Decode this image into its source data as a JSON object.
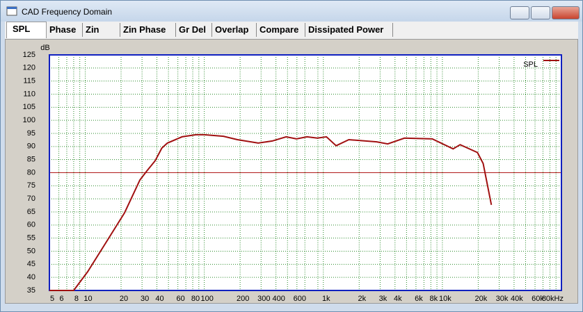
{
  "window": {
    "title": "CAD Frequency Domain"
  },
  "tabs": [
    "SPL",
    "Phase",
    "Zin",
    "Zin Phase",
    "Gr Del",
    "Overlap",
    "Compare",
    "Dissipated Power"
  ],
  "chart_data": {
    "type": "line",
    "y_label": "dB",
    "log_x": true,
    "grid": true,
    "legend": "upper right",
    "xlim": [
      5,
      100000
    ],
    "ylim": [
      35,
      125
    ],
    "yticks": [
      35,
      40,
      45,
      50,
      55,
      60,
      65,
      70,
      75,
      80,
      85,
      90,
      95,
      100,
      105,
      110,
      115,
      120,
      125
    ],
    "xticks": [
      5,
      6,
      8,
      10,
      20,
      30,
      40,
      60,
      80,
      100,
      200,
      300,
      400,
      600,
      {
        "value": 1000,
        "label": "1k"
      },
      {
        "value": 2000,
        "label": "2k"
      },
      {
        "value": 3000,
        "label": "3k"
      },
      {
        "value": 4000,
        "label": "4k"
      },
      {
        "value": 6000,
        "label": "6k"
      },
      {
        "value": 8000,
        "label": "8k"
      },
      {
        "value": 10000,
        "label": "10k"
      },
      {
        "value": 20000,
        "label": "20k"
      },
      {
        "value": 30000,
        "label": "30k"
      },
      {
        "value": 40000,
        "label": "40k"
      },
      {
        "value": 60000,
        "label": "60k"
      },
      {
        "value": 80000,
        "label": "80kHz"
      }
    ],
    "xgrid": [
      7,
      9,
      50,
      70,
      90,
      500,
      700,
      900,
      5000,
      7000,
      9000,
      50000,
      70000,
      90000
    ],
    "hline": {
      "value": 80,
      "color": "#b01818"
    },
    "x": [
      5,
      8,
      10.5,
      14.7,
      21.4,
      28.8,
      33,
      38.7,
      44,
      49,
      65,
      85,
      100,
      145,
      190,
      284,
      372,
      487,
      595,
      729,
      891,
      1062,
      1282,
      1637,
      2806,
      3476,
      4800,
      8224,
      12300,
      14100,
      19700,
      22000,
      25800
    ],
    "series": [
      {
        "name": "SPL",
        "color": "#a01010",
        "values": [
          35,
          35,
          42.2,
          52.8,
          64.7,
          77.2,
          80.7,
          84.6,
          89.4,
          91.3,
          93.7,
          94.5,
          94.5,
          93.9,
          92.6,
          91.3,
          92.1,
          93.7,
          92.9,
          93.7,
          93.2,
          93.7,
          90.3,
          92.6,
          91.8,
          91.0,
          93.2,
          92.9,
          89.1,
          90.7,
          87.7,
          83.5,
          67.7
        ]
      }
    ]
  }
}
